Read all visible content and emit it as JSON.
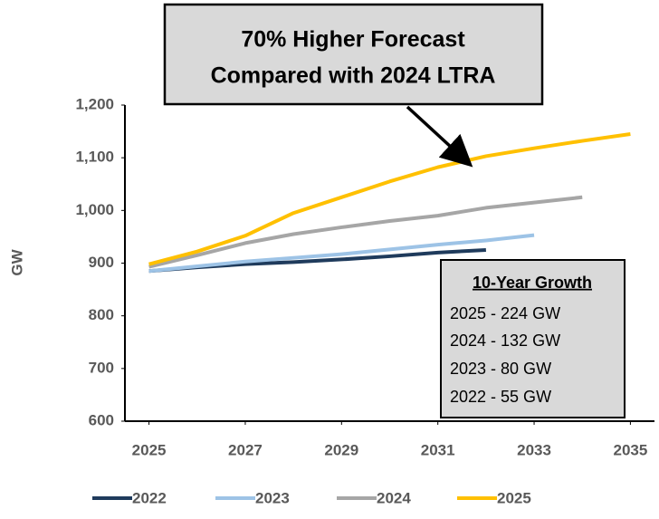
{
  "chart_data": {
    "type": "line",
    "annotation": [
      "70% Higher Forecast",
      "Compared with 2024 LTRA"
    ],
    "ylabel": "GW",
    "inset": {
      "title": "10-Year Growth",
      "lines": [
        "2025 - 224 GW",
        "2024 - 132 GW",
        "2023 - 80 GW",
        "2022 - 55 GW"
      ]
    },
    "x": [
      2025,
      2026,
      2027,
      2028,
      2029,
      2030,
      2031,
      2032,
      2033,
      2034,
      2035
    ],
    "series": [
      {
        "name": "2022",
        "color": "#1f3b5c",
        "values": [
          885,
          892,
          898,
          902,
          907,
          913,
          920,
          925,
          null,
          null,
          null
        ]
      },
      {
        "name": "2023",
        "color": "#9dc3e6",
        "values": [
          885,
          894,
          903,
          910,
          917,
          926,
          935,
          943,
          953,
          null,
          null
        ]
      },
      {
        "name": "2024",
        "color": "#a6a6a6",
        "values": [
          893,
          915,
          938,
          955,
          968,
          980,
          990,
          1005,
          1015,
          1025,
          null
        ]
      },
      {
        "name": "2025",
        "color": "#ffc000",
        "values": [
          898,
          922,
          952,
          995,
          1025,
          1055,
          1082,
          1103,
          1118,
          1132,
          1145
        ]
      }
    ],
    "xlim": [
      2024.5,
      2035.5
    ],
    "xticks": [
      2025,
      2027,
      2029,
      2031,
      2033,
      2035
    ],
    "ylim": [
      600,
      1200
    ],
    "yticks": [
      600,
      700,
      800,
      900,
      {
        "value": 1000,
        "label": "1,000"
      },
      {
        "value": 1100,
        "label": "1,100"
      },
      {
        "value": 1200,
        "label": "1,200"
      }
    ]
  }
}
